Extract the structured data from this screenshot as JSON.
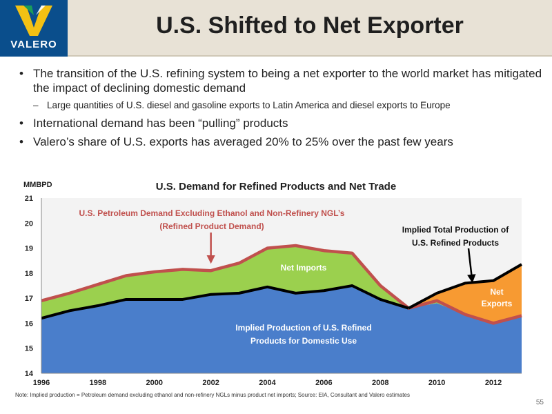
{
  "header": {
    "logo_text": "VALERO",
    "title": "U.S. Shifted to Net Exporter"
  },
  "bullets": [
    {
      "level": 1,
      "text": "The transition of the U.S. refining system to being a net exporter to the world market has mitigated the impact of declining domestic demand"
    },
    {
      "level": 2,
      "text": "Large quantities of U.S. diesel and gasoline exports to Latin America and diesel exports to Europe"
    },
    {
      "level": 1,
      "text": "International demand has been “pulling” products"
    },
    {
      "level": 1,
      "text": "Valero’s share of U.S. exports has averaged 20% to 25% over the past few years"
    }
  ],
  "chart_data": {
    "type": "area",
    "title": "U.S. Demand for Refined Products and Net Trade",
    "ylabel": "MMBPD",
    "xlim": [
      1996,
      2013
    ],
    "ylim": [
      14,
      21
    ],
    "x_ticks": [
      "1996",
      "1998",
      "2000",
      "2002",
      "2004",
      "2006",
      "2008",
      "2010",
      "2012"
    ],
    "y_ticks": [
      "14",
      "15",
      "16",
      "17",
      "18",
      "19",
      "20",
      "21"
    ],
    "grid": false,
    "x": [
      1996,
      1997,
      1998,
      1999,
      2000,
      2001,
      2002,
      2003,
      2004,
      2005,
      2006,
      2007,
      2008,
      2009,
      2010,
      2011,
      2012,
      2013
    ],
    "series": [
      {
        "name": "U.S. Petroleum Demand Excluding Ethanol and Non-Refinery NGL’s (Refined Product Demand)",
        "values": [
          16.9,
          17.2,
          17.55,
          17.9,
          18.05,
          18.15,
          18.1,
          18.4,
          19.0,
          19.1,
          18.9,
          18.8,
          17.5,
          16.6,
          16.9,
          16.35,
          16.0,
          16.3
        ]
      },
      {
        "name": "Implied Production of U.S. Refined Products for Domestic Use",
        "values": [
          16.2,
          16.5,
          16.7,
          16.95,
          16.95,
          16.95,
          17.15,
          17.2,
          17.45,
          17.2,
          17.3,
          17.5,
          16.95,
          16.6,
          16.8,
          16.35,
          16.0,
          16.3
        ]
      },
      {
        "name": "Implied Total Production of U.S. Refined Products",
        "values": [
          null,
          null,
          null,
          null,
          null,
          null,
          null,
          null,
          null,
          null,
          null,
          null,
          null,
          16.6,
          17.2,
          17.6,
          17.7,
          18.35
        ]
      }
    ],
    "annotations": {
      "demand_label": [
        "U.S. Petroleum Demand Excluding Ethanol and Non-Refinery NGL’s",
        "(Refined Product Demand)"
      ],
      "total_label": [
        "Implied Total Production of",
        "U.S. Refined Products"
      ],
      "imports_label": "Net Imports",
      "exports_label": [
        "Net",
        "Exports"
      ],
      "production_label": [
        "Implied Production of U.S. Refined",
        "Products for Domestic Use"
      ]
    },
    "colors": {
      "production_fill": "#4a7ecb",
      "imports_fill": "#9bd04e",
      "exports_fill": "#f79a32",
      "demand_line": "#c0504d",
      "production_line": "#000000"
    }
  },
  "footer": {
    "note": "Note: Implied production = Petroleum demand excluding ethanol and non-refinery NGLs minus product net imports; Source: EIA, Consultant and Valero estimates",
    "page_number": "55"
  }
}
